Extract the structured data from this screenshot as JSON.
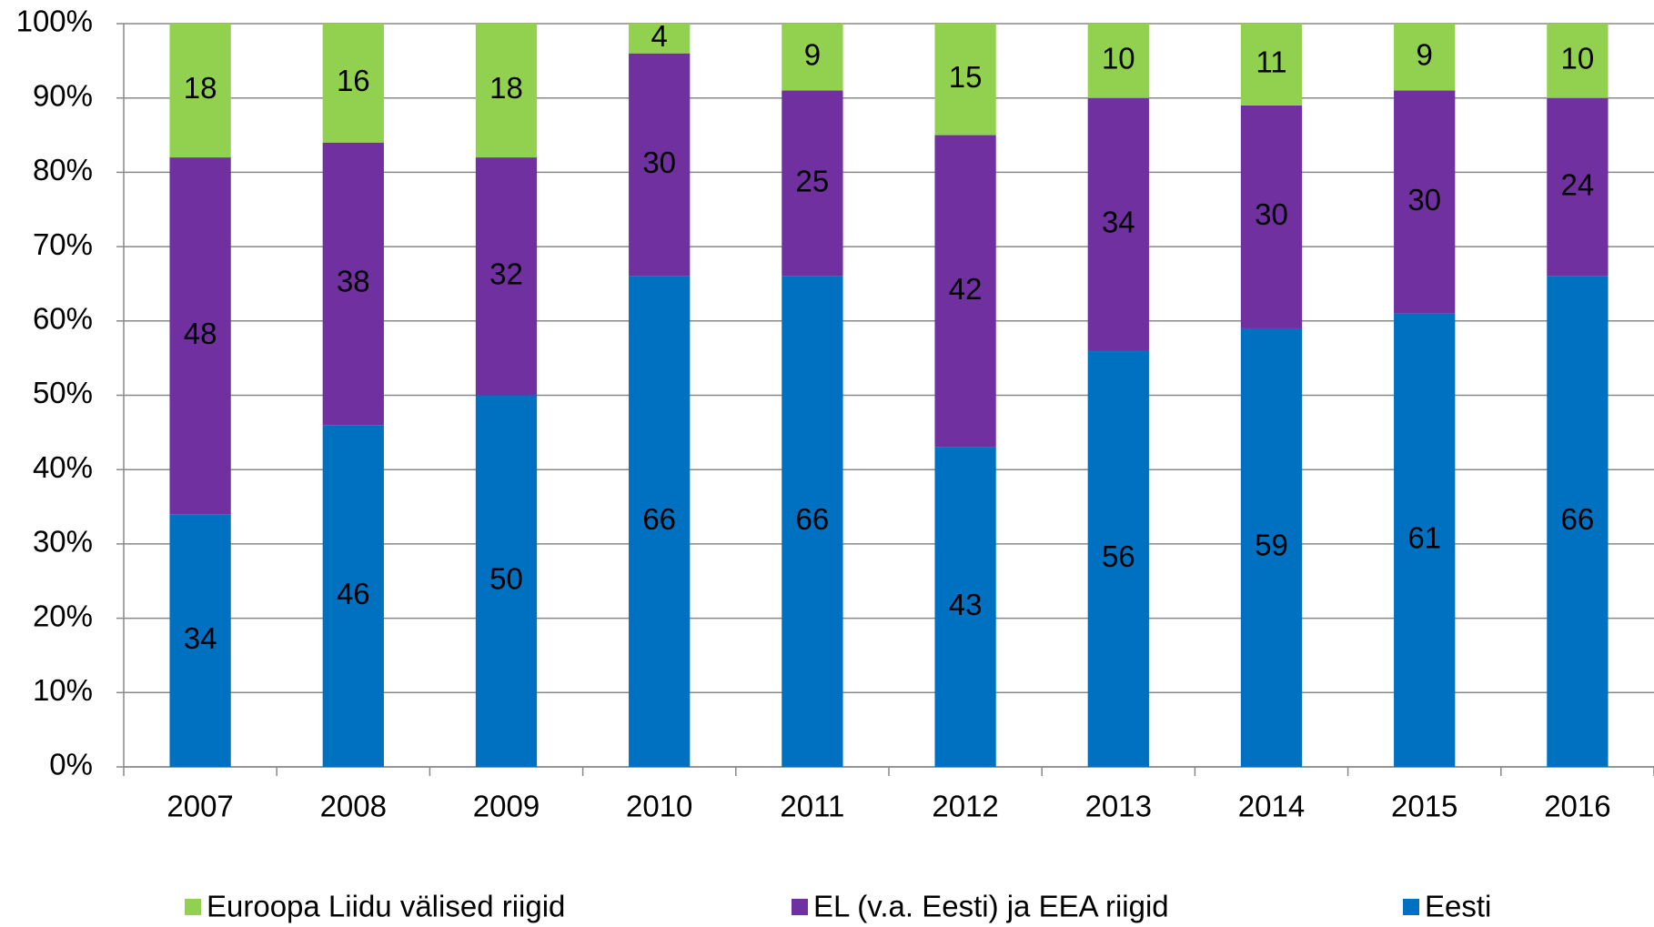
{
  "chart_data": {
    "type": "bar",
    "stacked": true,
    "categories": [
      "2007",
      "2008",
      "2009",
      "2010",
      "2011",
      "2012",
      "2013",
      "2014",
      "2015",
      "2016"
    ],
    "series": [
      {
        "name": "Eesti",
        "color": "#0070c0",
        "values": [
          34,
          46,
          50,
          66,
          66,
          43,
          56,
          59,
          61,
          66
        ]
      },
      {
        "name": "EL (v.a. Eesti) ja EEA riigid",
        "color": "#7030a0",
        "values": [
          48,
          38,
          32,
          30,
          25,
          42,
          34,
          30,
          30,
          24
        ]
      },
      {
        "name": "Euroopa Liidu välised riigid",
        "color": "#92d050",
        "values": [
          18,
          16,
          18,
          4,
          9,
          15,
          10,
          11,
          9,
          10
        ]
      }
    ],
    "ylim": [
      0,
      100
    ],
    "yticks": [
      {
        "value": 0,
        "label": "0%"
      },
      {
        "value": 10,
        "label": "10%"
      },
      {
        "value": 20,
        "label": "20%"
      },
      {
        "value": 30,
        "label": "30%"
      },
      {
        "value": 40,
        "label": "40%"
      },
      {
        "value": 50,
        "label": "50%"
      },
      {
        "value": 60,
        "label": "60%"
      },
      {
        "value": 70,
        "label": "70%"
      },
      {
        "value": 80,
        "label": "80%"
      },
      {
        "value": 90,
        "label": "90%"
      },
      {
        "value": 100,
        "label": "100%"
      }
    ],
    "grid": true,
    "legend": "bottom"
  }
}
